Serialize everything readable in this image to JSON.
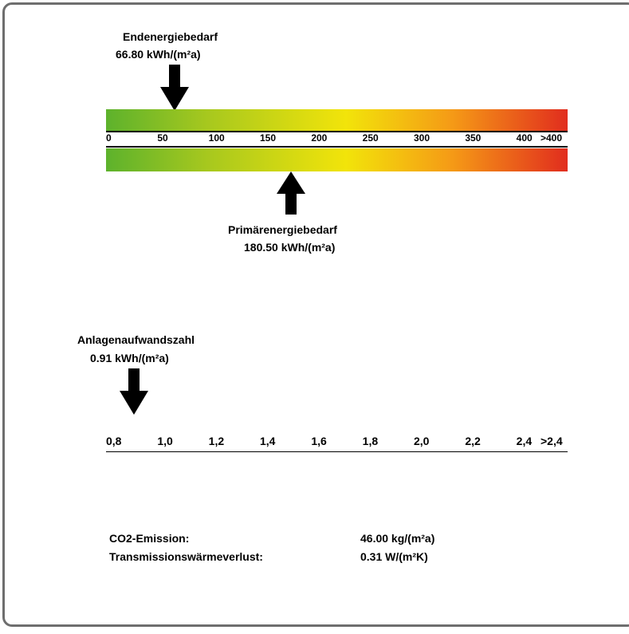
{
  "chart_data": [
    {
      "type": "bar-scale",
      "scale_ticks": [
        "0",
        "50",
        "100",
        "150",
        "200",
        "250",
        "300",
        "350",
        "400",
        ">400"
      ],
      "xlim": [
        0,
        450
      ],
      "end_energy": {
        "label": "Endenergiebedarf",
        "value_text": "66.80 kWh/(m²a)",
        "value": 66.8
      },
      "primary_energy": {
        "label": "Primärenergiebedarf",
        "value_text": "180.50 kWh/(m²a)",
        "value": 180.5
      },
      "gradient_colors": [
        "#5db22c",
        "#a7c81e",
        "#f2e40a",
        "#f59a16",
        "#e12d1e"
      ]
    },
    {
      "type": "scale",
      "scale_ticks": [
        "0,8",
        "1,0",
        "1,2",
        "1,4",
        "1,6",
        "1,8",
        "2,0",
        "2,2",
        "2,4",
        ">2,4"
      ],
      "xlim": [
        0.8,
        2.6
      ],
      "indicator": {
        "label": "Anlagenaufwandszahl",
        "value_text": "0.91 kWh/(m²a)",
        "value": 0.91
      }
    }
  ],
  "summary": {
    "co2_label": "CO2-Emission:",
    "co2_value": "46.00 kg/(m²a)",
    "trans_label": "Transmissionswärmeverlust:",
    "trans_value": "0.31 W/(m²K)"
  }
}
